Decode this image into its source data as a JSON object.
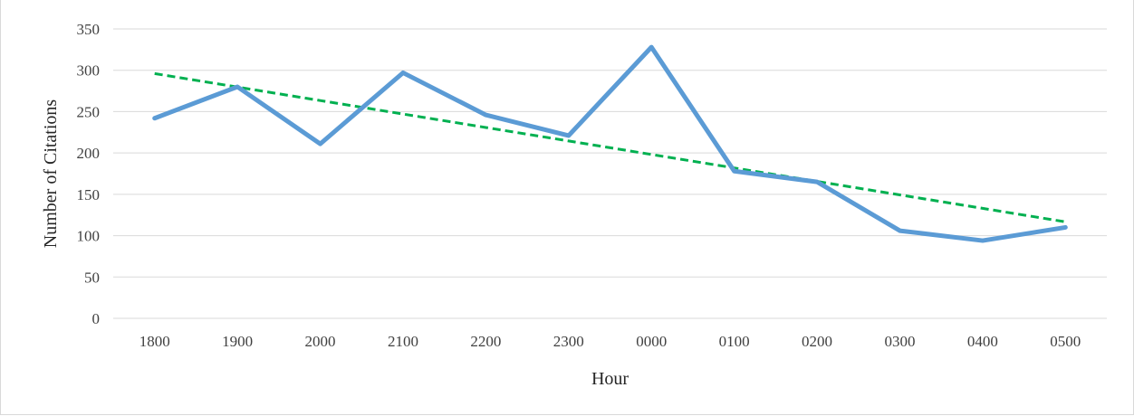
{
  "chart_data": {
    "type": "line",
    "title": "",
    "xlabel": "Hour",
    "ylabel": "Number of Citations",
    "categories": [
      "1800",
      "1900",
      "2000",
      "2100",
      "2200",
      "2300",
      "0000",
      "0100",
      "0200",
      "0300",
      "0400",
      "0500"
    ],
    "ylim": [
      0,
      350
    ],
    "yticks": [
      0,
      50,
      100,
      150,
      200,
      250,
      300,
      350
    ],
    "grid": true,
    "legend": "none",
    "series": [
      {
        "values": [
          242,
          280,
          211,
          297,
          246,
          221,
          328,
          178,
          165,
          106,
          94,
          110
        ],
        "color": "#5b9bd5",
        "style": "solid"
      },
      {
        "values": [
          296,
          279.7,
          263.4,
          247.1,
          230.8,
          214.5,
          198.2,
          181.9,
          165.6,
          149.3,
          133,
          116.7
        ],
        "color": "#00b050",
        "style": "dashed",
        "kind": "linear-trendline"
      }
    ]
  }
}
